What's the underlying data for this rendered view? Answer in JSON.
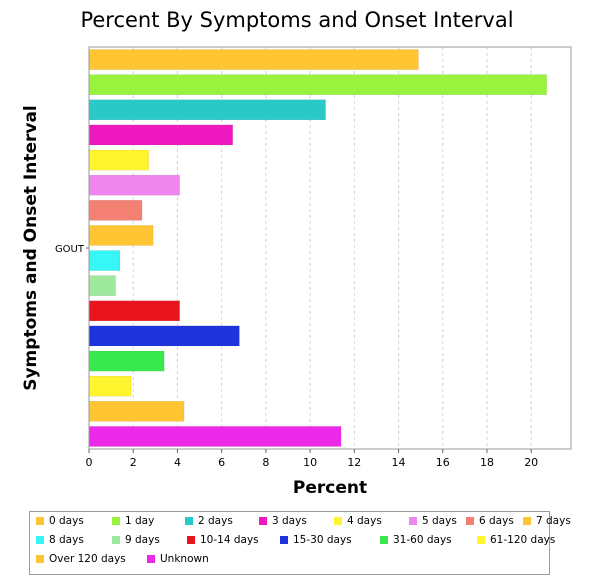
{
  "chart_data": {
    "type": "bar",
    "orientation": "horizontal",
    "title": "Percent By Symptoms and Onset Interval",
    "xlabel": "Percent",
    "ylabel": "Symptoms and Onset Interval",
    "category": "GOUT",
    "xlim": [
      0,
      21.8
    ],
    "xticks": [
      0,
      2,
      4,
      6,
      8,
      10,
      12,
      14,
      16,
      18,
      20
    ],
    "grid": "vertical dashed",
    "legend_position": "bottom",
    "series": [
      {
        "name": "0 days",
        "value": 14.9,
        "color": "#FFC533"
      },
      {
        "name": "1 day",
        "value": 20.7,
        "color": "#99F23D"
      },
      {
        "name": "2 days",
        "value": 10.7,
        "color": "#2BC8C8"
      },
      {
        "name": "3 days",
        "value": 6.5,
        "color": "#EE1ABF"
      },
      {
        "name": "4 days",
        "value": 2.7,
        "color": "#FFF52E"
      },
      {
        "name": "5 days",
        "value": 4.1,
        "color": "#EE86EE"
      },
      {
        "name": "6 days",
        "value": 2.4,
        "color": "#F48074"
      },
      {
        "name": "7 days",
        "value": 2.9,
        "color": "#FFC533"
      },
      {
        "name": "8 days",
        "value": 1.4,
        "color": "#36F6F6"
      },
      {
        "name": "9 days",
        "value": 1.2,
        "color": "#9EE99E"
      },
      {
        "name": "10-14 days",
        "value": 4.1,
        "color": "#E8141E"
      },
      {
        "name": "15-30 days",
        "value": 6.8,
        "color": "#1E33DC"
      },
      {
        "name": "31-60 days",
        "value": 3.4,
        "color": "#38E84C"
      },
      {
        "name": "61-120 days",
        "value": 1.9,
        "color": "#FFF52E"
      },
      {
        "name": "Over 120 days",
        "value": 4.3,
        "color": "#FFC533"
      },
      {
        "name": "Unknown",
        "value": 11.4,
        "color": "#EC28E9"
      }
    ]
  }
}
